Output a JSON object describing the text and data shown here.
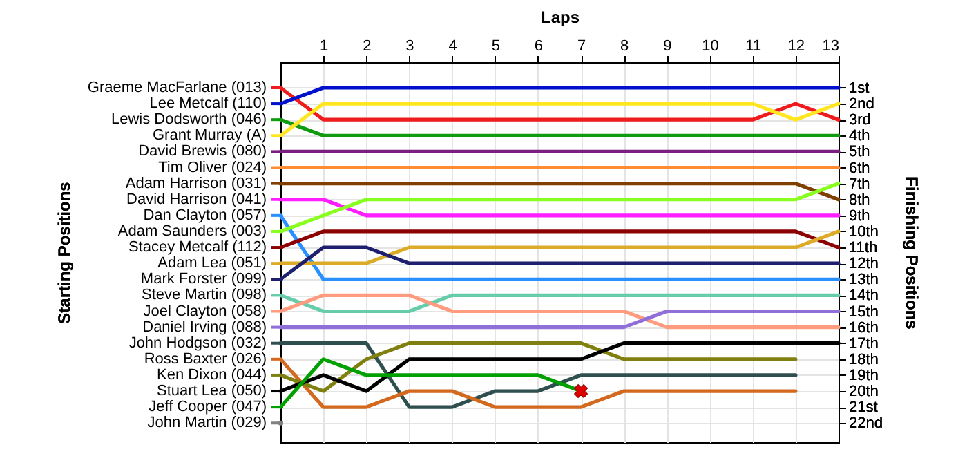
{
  "chart_data": {
    "type": "line",
    "xlabel": "Laps",
    "ylabel": "Finishing Positions",
    "annotations": [
      "Starting Positions"
    ],
    "grid": true,
    "legend": "left",
    "line_style": "solid",
    "marker": "none",
    "x": [
      0,
      1,
      2,
      3,
      4,
      5,
      6,
      7,
      8,
      9,
      10,
      11,
      12,
      13
    ],
    "xlim": [
      0,
      13
    ],
    "xticks": [
      1,
      2,
      3,
      4,
      5,
      6,
      7,
      8,
      9,
      10,
      11,
      12,
      13
    ],
    "ylim": [
      23.2,
      -0.6
    ],
    "yticks": [
      {
        "value": 1,
        "label": "1st"
      },
      {
        "value": 2,
        "label": "2nd"
      },
      {
        "value": 3,
        "label": "3rd"
      },
      {
        "value": 4,
        "label": "4th"
      },
      {
        "value": 5,
        "label": "5th"
      },
      {
        "value": 6,
        "label": "6th"
      },
      {
        "value": 7,
        "label": "7th"
      },
      {
        "value": 8,
        "label": "8th"
      },
      {
        "value": 9,
        "label": "9th"
      },
      {
        "value": 10,
        "label": "10th"
      },
      {
        "value": 11,
        "label": "11th"
      },
      {
        "value": 12,
        "label": "12th"
      },
      {
        "value": 13,
        "label": "13th"
      },
      {
        "value": 14,
        "label": "14th"
      },
      {
        "value": 15,
        "label": "15th"
      },
      {
        "value": 16,
        "label": "16th"
      },
      {
        "value": 17,
        "label": "17th"
      },
      {
        "value": 18,
        "label": "18th"
      },
      {
        "value": 19,
        "label": "19th"
      },
      {
        "value": 20,
        "label": "20th"
      },
      {
        "value": 21,
        "label": "21st"
      },
      {
        "value": 22,
        "label": "22nd"
      }
    ],
    "series": [
      {
        "name": "Graeme MacFarlane (013)",
        "color": "#ee1c1c",
        "values": [
          1,
          3,
          3,
          3,
          3,
          3,
          3,
          3,
          3,
          3,
          3,
          3,
          2,
          3
        ]
      },
      {
        "name": "Lee Metcalf (110)",
        "color": "#0010cc",
        "values": [
          2,
          1,
          1,
          1,
          1,
          1,
          1,
          1,
          1,
          1,
          1,
          1,
          1,
          1
        ]
      },
      {
        "name": "Lewis Dodsworth (046)",
        "color": "#109a10",
        "values": [
          3,
          4,
          4,
          4,
          4,
          4,
          4,
          4,
          4,
          4,
          4,
          4,
          4,
          4
        ]
      },
      {
        "name": "Grant Murray (A)",
        "color": "#ffe61e",
        "values": [
          4,
          2,
          2,
          2,
          2,
          2,
          2,
          2,
          2,
          2,
          2,
          2,
          3,
          2
        ]
      },
      {
        "name": "David Brewis (080)",
        "color": "#7a1f80",
        "values": [
          5,
          5,
          5,
          5,
          5,
          5,
          5,
          5,
          5,
          5,
          5,
          5,
          5,
          5
        ]
      },
      {
        "name": "Tim Oliver (024)",
        "color": "#ff8c32",
        "values": [
          6,
          6,
          6,
          6,
          6,
          6,
          6,
          6,
          6,
          6,
          6,
          6,
          6,
          6
        ]
      },
      {
        "name": "Adam Harrison (031)",
        "color": "#7f3f00",
        "values": [
          7,
          7,
          7,
          7,
          7,
          7,
          7,
          7,
          7,
          7,
          7,
          7,
          7,
          8
        ]
      },
      {
        "name": "David Harrison (041)",
        "color": "#ff1eff",
        "values": [
          8,
          8,
          9,
          9,
          9,
          9,
          9,
          9,
          9,
          9,
          9,
          9,
          9,
          9
        ]
      },
      {
        "name": "Dan Clayton (057)",
        "color": "#2a8fff",
        "values": [
          9,
          13,
          13,
          13,
          13,
          13,
          13,
          13,
          13,
          13,
          13,
          13,
          13,
          13
        ]
      },
      {
        "name": "Adam Saunders (003)",
        "color": "#88ff1e",
        "values": [
          10,
          9,
          8,
          8,
          8,
          8,
          8,
          8,
          8,
          8,
          8,
          8,
          8,
          7
        ]
      },
      {
        "name": "Stacey Metcalf (112)",
        "color": "#8b0000",
        "values": [
          11,
          10,
          10,
          10,
          10,
          10,
          10,
          10,
          10,
          10,
          10,
          10,
          10,
          11
        ]
      },
      {
        "name": "Adam Lea (051)",
        "color": "#dcac28",
        "values": [
          12,
          12,
          12,
          11,
          11,
          11,
          11,
          11,
          11,
          11,
          11,
          11,
          11,
          10
        ]
      },
      {
        "name": "Mark Forster (099)",
        "color": "#1f1f6f",
        "values": [
          13,
          11,
          11,
          12,
          12,
          12,
          12,
          12,
          12,
          12,
          12,
          12,
          12,
          12
        ]
      },
      {
        "name": "Steve Martin (098)",
        "color": "#66ccaa",
        "values": [
          14,
          15,
          15,
          15,
          14,
          14,
          14,
          14,
          14,
          14,
          14,
          14,
          14,
          14
        ]
      },
      {
        "name": "Joel Clayton (058)",
        "color": "#ff9c80",
        "values": [
          15,
          14,
          14,
          14,
          15,
          15,
          15,
          15,
          15,
          16,
          16,
          16,
          16,
          16
        ]
      },
      {
        "name": "Daniel Irving (088)",
        "color": "#9070d8",
        "values": [
          16,
          16,
          16,
          16,
          16,
          16,
          16,
          16,
          16,
          15,
          15,
          15,
          15,
          15
        ]
      },
      {
        "name": "John Hodgson (032)",
        "color": "#2f4f4f",
        "values": [
          17,
          17,
          17,
          21,
          21,
          20,
          20,
          19,
          19,
          19,
          19,
          19,
          19,
          null
        ]
      },
      {
        "name": "Ross Baxter (026)",
        "color": "#d2691e",
        "values": [
          18,
          21,
          21,
          20,
          20,
          21,
          21,
          21,
          20,
          20,
          20,
          20,
          20,
          null
        ]
      },
      {
        "name": "Ken Dixon (044)",
        "color": "#808010",
        "values": [
          19,
          20,
          18,
          17,
          17,
          17,
          17,
          17,
          18,
          18,
          18,
          18,
          18,
          null
        ]
      },
      {
        "name": "Stuart Lea (050)",
        "color": "#000000",
        "values": [
          20,
          19,
          20,
          18,
          18,
          18,
          18,
          18,
          17,
          17,
          17,
          17,
          17,
          17
        ]
      },
      {
        "name": "Jeff Cooper (047)",
        "color": "#00a000",
        "values": [
          21,
          18,
          19,
          19,
          19,
          19,
          19,
          20,
          null,
          null,
          null,
          null,
          null,
          null
        ]
      },
      {
        "type": "scatter",
        "marker": "cross",
        "color": "#e00000",
        "x": [
          7
        ],
        "values": [
          20
        ]
      },
      {
        "name": "John Martin (029)",
        "color": "#808080",
        "values": [
          22,
          null,
          null,
          null,
          null,
          null,
          null,
          null,
          null,
          null,
          null,
          null,
          null,
          null
        ]
      }
    ]
  }
}
